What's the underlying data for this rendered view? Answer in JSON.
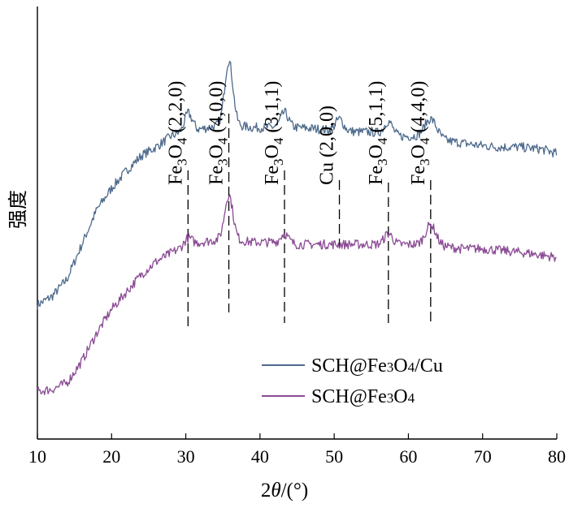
{
  "chart_data": {
    "type": "line",
    "xlabel": "2θ/(°)",
    "ylabel": "强度",
    "xlim": [
      10,
      80
    ],
    "xticks": [
      10,
      20,
      30,
      40,
      50,
      60,
      70,
      80
    ],
    "grid": false,
    "legend_position": "bottom-right",
    "series": [
      {
        "name": "SCH@Fe3O4/Cu",
        "color": "#4e6a8c",
        "baseline": [
          [
            10,
            0.31
          ],
          [
            12,
            0.33
          ],
          [
            14,
            0.37
          ],
          [
            16,
            0.45
          ],
          [
            18,
            0.53
          ],
          [
            20,
            0.58
          ],
          [
            22,
            0.62
          ],
          [
            24,
            0.655
          ],
          [
            26,
            0.675
          ],
          [
            28,
            0.7
          ],
          [
            29.5,
            0.71
          ],
          [
            30.3,
            0.735
          ],
          [
            31.5,
            0.715
          ],
          [
            33,
            0.72
          ],
          [
            34.5,
            0.725
          ],
          [
            35.8,
            0.73
          ],
          [
            37,
            0.725
          ],
          [
            39,
            0.72
          ],
          [
            41,
            0.72
          ],
          [
            43.3,
            0.725
          ],
          [
            45,
            0.72
          ],
          [
            47,
            0.718
          ],
          [
            49,
            0.715
          ],
          [
            51,
            0.715
          ],
          [
            53,
            0.71
          ],
          [
            55,
            0.71
          ],
          [
            57,
            0.705
          ],
          [
            59,
            0.7
          ],
          [
            61,
            0.7
          ],
          [
            63,
            0.7
          ],
          [
            65,
            0.69
          ],
          [
            67,
            0.685
          ],
          [
            69,
            0.68
          ],
          [
            72,
            0.675
          ],
          [
            75,
            0.675
          ],
          [
            78,
            0.67
          ],
          [
            80,
            0.66
          ]
        ],
        "peaks": [
          {
            "x": 30.3,
            "height": 0.02,
            "width": 0.6
          },
          {
            "x": 35.8,
            "height": 0.145,
            "width": 0.55
          },
          {
            "x": 43.3,
            "height": 0.03,
            "width": 0.5
          },
          {
            "x": 50.7,
            "height": 0.025,
            "width": 0.5
          },
          {
            "x": 57.3,
            "height": 0.03,
            "width": 0.55
          },
          {
            "x": 63.0,
            "height": 0.04,
            "width": 0.8
          }
        ]
      },
      {
        "name": "SCH@Fe3O4",
        "color": "#8a4a94",
        "baseline": [
          [
            10,
            0.11
          ],
          [
            12,
            0.115
          ],
          [
            14,
            0.13
          ],
          [
            16,
            0.18
          ],
          [
            18,
            0.245
          ],
          [
            20,
            0.3
          ],
          [
            22,
            0.34
          ],
          [
            24,
            0.38
          ],
          [
            26,
            0.41
          ],
          [
            28,
            0.43
          ],
          [
            30.3,
            0.45
          ],
          [
            32,
            0.455
          ],
          [
            34,
            0.46
          ],
          [
            35.8,
            0.465
          ],
          [
            37,
            0.46
          ],
          [
            39,
            0.455
          ],
          [
            41,
            0.455
          ],
          [
            43.3,
            0.455
          ],
          [
            45,
            0.45
          ],
          [
            47,
            0.45
          ],
          [
            49,
            0.45
          ],
          [
            51,
            0.45
          ],
          [
            53,
            0.45
          ],
          [
            55,
            0.45
          ],
          [
            57,
            0.45
          ],
          [
            59,
            0.45
          ],
          [
            61,
            0.45
          ],
          [
            63,
            0.45
          ],
          [
            65,
            0.445
          ],
          [
            67,
            0.44
          ],
          [
            70,
            0.44
          ],
          [
            73,
            0.435
          ],
          [
            76,
            0.43
          ],
          [
            78,
            0.425
          ],
          [
            80,
            0.42
          ]
        ],
        "peaks": [
          {
            "x": 30.3,
            "height": 0.015,
            "width": 0.5
          },
          {
            "x": 35.8,
            "height": 0.1,
            "width": 0.55
          },
          {
            "x": 43.3,
            "height": 0.02,
            "width": 0.5
          },
          {
            "x": 57.3,
            "height": 0.025,
            "width": 0.55
          },
          {
            "x": 63.0,
            "height": 0.045,
            "width": 0.7
          }
        ]
      }
    ],
    "peak_markers": [
      {
        "x": 30.3,
        "label_main": "Fe",
        "label_sub": "3",
        "label_mid": "O",
        "label_sub2": "4",
        "label_tail": " (2,2,0)"
      },
      {
        "x": 35.8,
        "label_main": "Fe",
        "label_sub": "3",
        "label_mid": "O",
        "label_sub2": "4",
        "label_tail": " (4,0,0)"
      },
      {
        "x": 43.3,
        "label_main": "Fe",
        "label_sub": "3",
        "label_mid": "O",
        "label_sub2": "4",
        "label_tail": " (3,1,1)"
      },
      {
        "x": 50.7,
        "label_main": "Cu (2,0,0)",
        "label_sub": "",
        "label_mid": "",
        "label_sub2": "",
        "label_tail": ""
      },
      {
        "x": 57.3,
        "label_main": "Fe",
        "label_sub": "3",
        "label_mid": "O",
        "label_sub2": "4",
        "label_tail": " (5,1,1)"
      },
      {
        "x": 63.0,
        "label_main": "Fe",
        "label_sub": "3",
        "label_mid": "O",
        "label_sub2": "4",
        "label_tail": " (4,4,0)"
      }
    ]
  }
}
